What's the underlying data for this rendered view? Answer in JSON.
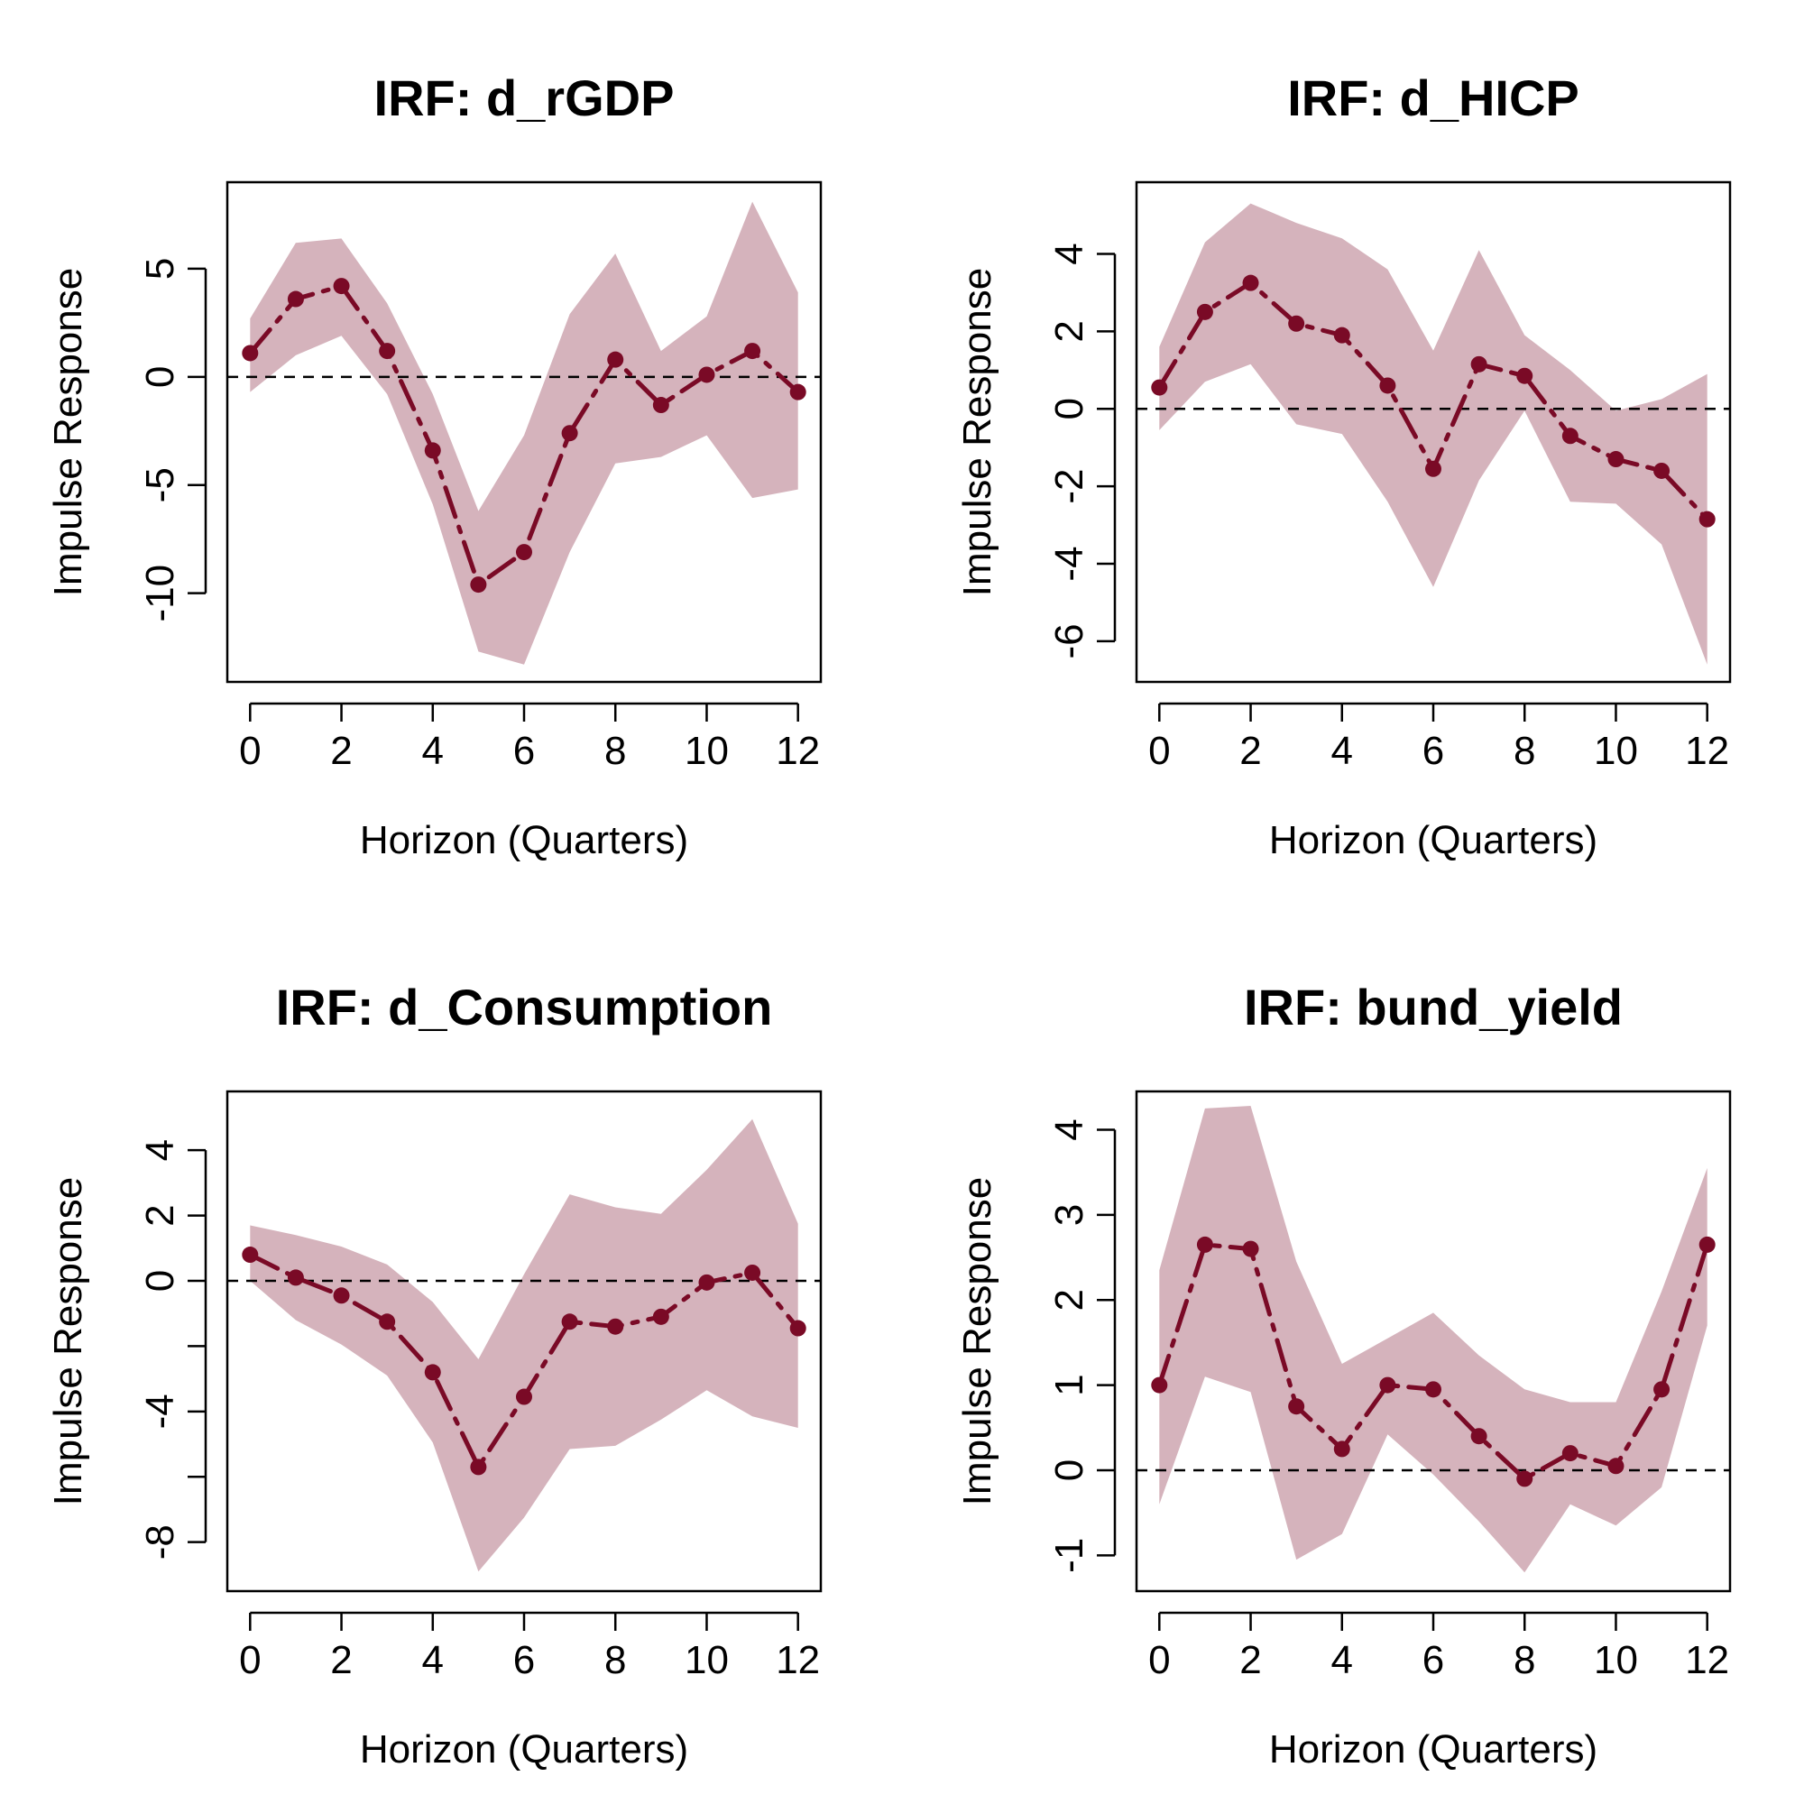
{
  "colors": {
    "band": "#d5b3bc",
    "line": "#7a0a26",
    "axis": "#000000",
    "zero_line": "#000000"
  },
  "chart_data": [
    {
      "type": "line",
      "title": "IRF: d_rGDP",
      "xlabel": "Horizon (Quarters)",
      "ylabel": "Impulse Response",
      "x": [
        0,
        1,
        2,
        3,
        4,
        5,
        6,
        7,
        8,
        9,
        10,
        11,
        12
      ],
      "series": [
        {
          "values": [
            1.1,
            3.6,
            4.2,
            1.2,
            -3.4,
            -9.6,
            -8.1,
            -2.6,
            0.8,
            -1.3,
            0.1,
            1.2,
            -0.7
          ]
        }
      ],
      "band_upper": [
        2.7,
        6.2,
        6.4,
        3.4,
        -0.8,
        -6.2,
        -2.7,
        2.9,
        5.7,
        1.2,
        2.8,
        8.1,
        3.9
      ],
      "band_lower": [
        -0.7,
        1.0,
        1.9,
        -0.8,
        -5.9,
        -12.7,
        -13.3,
        -8.1,
        -4.0,
        -3.7,
        -2.7,
        -5.6,
        -5.2
      ],
      "xlim": [
        -0.5,
        12.5
      ],
      "ylim": [
        -14.1,
        9.0
      ],
      "xticks": [
        0,
        2,
        4,
        6,
        8,
        10,
        12
      ],
      "yticks": [
        -10,
        -5,
        0,
        5
      ],
      "ytick_labels": [
        "-10",
        "-5",
        "0",
        "5"
      ],
      "zero_line": true,
      "grid": false,
      "legend": "none"
    },
    {
      "type": "line",
      "title": "IRF: d_HICP",
      "xlabel": "Horizon (Quarters)",
      "ylabel": "Impulse Response",
      "x": [
        0,
        1,
        2,
        3,
        4,
        5,
        6,
        7,
        8,
        9,
        10,
        11,
        12
      ],
      "series": [
        {
          "values": [
            0.55,
            2.5,
            3.25,
            2.2,
            1.9,
            0.6,
            -1.55,
            1.15,
            0.85,
            -0.7,
            -1.3,
            -1.6,
            -2.85
          ]
        }
      ],
      "band_upper": [
        1.6,
        4.3,
        5.3,
        4.8,
        4.4,
        3.6,
        1.5,
        4.1,
        1.9,
        1.0,
        -0.05,
        0.25,
        0.9
      ],
      "band_lower": [
        -0.55,
        0.7,
        1.15,
        -0.4,
        -0.65,
        -2.4,
        -4.6,
        -1.85,
        -0.05,
        -2.4,
        -2.45,
        -3.5,
        -6.6
      ],
      "xlim": [
        -0.5,
        12.5
      ],
      "ylim": [
        -7.05,
        5.85
      ],
      "xticks": [
        0,
        2,
        4,
        6,
        8,
        10,
        12
      ],
      "yticks": [
        -6,
        -4,
        -2,
        0,
        2,
        4
      ],
      "ytick_labels": [
        "-6",
        "-4",
        "-2",
        "0",
        "2",
        "4"
      ],
      "zero_line": true,
      "grid": false,
      "legend": "none"
    },
    {
      "type": "line",
      "title": "IRF: d_Consumption",
      "xlabel": "Horizon (Quarters)",
      "ylabel": "Impulse Response",
      "x": [
        0,
        1,
        2,
        3,
        4,
        5,
        6,
        7,
        8,
        9,
        10,
        11,
        12
      ],
      "series": [
        {
          "values": [
            0.8,
            0.1,
            -0.45,
            -1.25,
            -2.8,
            -5.7,
            -3.55,
            -1.25,
            -1.4,
            -1.1,
            -0.05,
            0.25,
            -1.45
          ]
        }
      ],
      "band_upper": [
        1.7,
        1.4,
        1.05,
        0.5,
        -0.65,
        -2.4,
        0.2,
        2.65,
        2.25,
        2.05,
        3.4,
        4.95,
        1.75
      ],
      "band_lower": [
        0.0,
        -1.2,
        -1.95,
        -2.9,
        -4.95,
        -8.9,
        -7.25,
        -5.15,
        -5.05,
        -4.25,
        -3.35,
        -4.15,
        -4.5
      ],
      "xlim": [
        -0.5,
        12.5
      ],
      "ylim": [
        -9.5,
        5.8
      ],
      "xticks": [
        0,
        2,
        4,
        6,
        8,
        10,
        12
      ],
      "yticks": [
        -8,
        -4,
        0,
        2,
        4
      ],
      "ytick_labels": [
        "-8",
        "-4",
        "0",
        "2",
        "4"
      ],
      "extra_yticks": [
        -6,
        -2
      ],
      "zero_line": true,
      "grid": false,
      "legend": "none"
    },
    {
      "type": "line",
      "title": "IRF: bund_yield",
      "xlabel": "Horizon (Quarters)",
      "ylabel": "Impulse Response",
      "x": [
        0,
        1,
        2,
        3,
        4,
        5,
        6,
        7,
        8,
        9,
        10,
        11,
        12
      ],
      "series": [
        {
          "values": [
            1.0,
            2.65,
            2.6,
            0.75,
            0.25,
            1.0,
            0.95,
            0.4,
            -0.1,
            0.2,
            0.05,
            0.95,
            2.65
          ]
        }
      ],
      "band_upper": [
        2.35,
        4.25,
        4.28,
        2.45,
        1.25,
        1.55,
        1.85,
        1.35,
        0.95,
        0.8,
        0.8,
        2.1,
        3.55
      ],
      "band_lower": [
        -0.4,
        1.1,
        0.92,
        -1.05,
        -0.75,
        0.42,
        -0.05,
        -0.6,
        -1.2,
        -0.4,
        -0.65,
        -0.2,
        1.7
      ],
      "xlim": [
        -0.5,
        12.5
      ],
      "ylim": [
        -1.42,
        4.45
      ],
      "xticks": [
        0,
        2,
        4,
        6,
        8,
        10,
        12
      ],
      "yticks": [
        -1,
        0,
        1,
        2,
        3,
        4
      ],
      "ytick_labels": [
        "-1",
        "0",
        "1",
        "2",
        "3",
        "4"
      ],
      "zero_line": true,
      "grid": false,
      "legend": "none"
    }
  ]
}
